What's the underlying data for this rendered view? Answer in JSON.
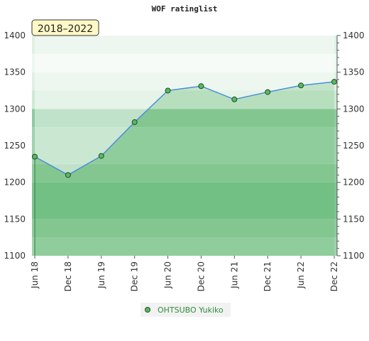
{
  "chart_data": {
    "type": "area",
    "title": "WOF ratinglist",
    "badge": "2018–2022",
    "categories": [
      "Jun 18",
      "Dec 18",
      "Jun 19",
      "Dec 19",
      "Jun 20",
      "Dec 20",
      "Jun 21",
      "Dec 21",
      "Jun 22",
      "Dec 22"
    ],
    "series": [
      {
        "name": "OHTSUBO Yukiko",
        "values": [
          1235,
          1210,
          1236,
          1282,
          1325,
          1331,
          1313,
          1323,
          1332,
          1337
        ]
      }
    ],
    "ylim": [
      1100,
      1400
    ],
    "yticks": [
      1100,
      1150,
      1200,
      1250,
      1300,
      1350,
      1400
    ],
    "grid": true,
    "legend_position": "bottom-center",
    "colors": {
      "line": "#4a90d9",
      "point_fill": "#5cb85c",
      "point_stroke": "#1e4d2b",
      "area_fill": "#4caf50",
      "band_dark": "#7cc492",
      "band_light": "#e8f5ec",
      "badge_fill": "#fff8c6",
      "legend_text": "#2e8b3e"
    }
  }
}
